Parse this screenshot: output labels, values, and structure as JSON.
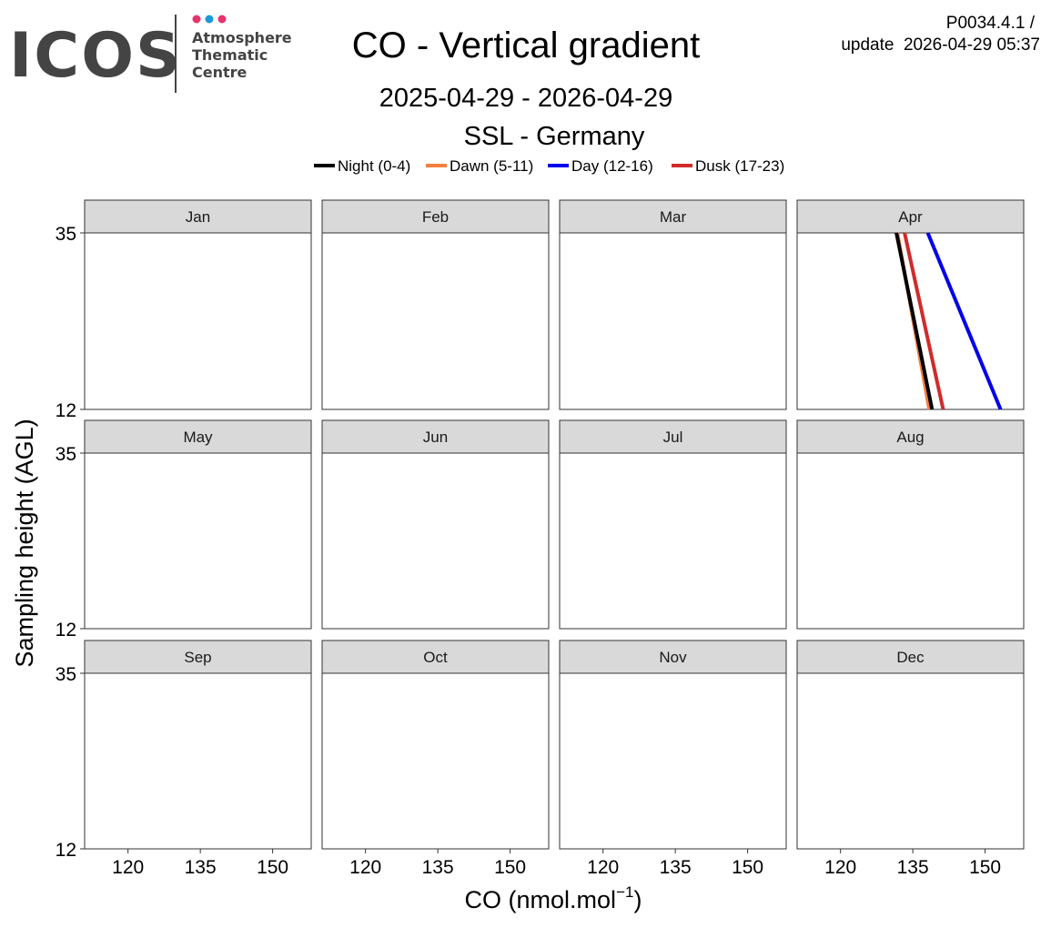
{
  "header": {
    "logo": {
      "wordmark": "ICOS",
      "lines": [
        "Atmosphere",
        "Thematic",
        "Centre"
      ],
      "dot_colors": [
        "#e8336d",
        "#1a9bd7",
        "#e8336d"
      ],
      "text_color": "#444444",
      "divider_color": "#444444"
    },
    "title": "CO - Vertical gradient",
    "date_range": "2025-04-29 - 2026-04-29",
    "station": "SSL - Germany",
    "version": "P0034.4.1 /",
    "update": "update  2026-04-29 05:37"
  },
  "chart_data": {
    "type": "line",
    "xlabel": "CO (nmol.mol",
    "xlabel_sup": "−1",
    "xlabel_close": ")",
    "ylabel": "Sampling height (AGL)",
    "xlim": [
      111,
      158
    ],
    "xticks": [
      120,
      135,
      150
    ],
    "xtick_labels": [
      "120",
      "135",
      "150"
    ],
    "ylim": [
      12,
      35
    ],
    "yticks": [
      12,
      35
    ],
    "ytick_labels": [
      "12",
      "35"
    ],
    "grid": false,
    "legend": {
      "placement": "top",
      "entries": [
        {
          "name": "Night (0-4)",
          "color": "#000000"
        },
        {
          "name": "Dawn (5-11)",
          "color": "#f47f3f"
        },
        {
          "name": "Day (12-16)",
          "color": "#0000ee"
        },
        {
          "name": "Dusk (17-23)",
          "color": "#d12b2b"
        }
      ]
    },
    "panels": [
      {
        "label": "Jan",
        "series": []
      },
      {
        "label": "Feb",
        "series": []
      },
      {
        "label": "Mar",
        "series": []
      },
      {
        "label": "Apr",
        "series": [
          {
            "name": "Dawn (5-11)",
            "color": "#f47f3f",
            "points": [
              [
                131.8,
                35
              ],
              [
                138.4,
                12
              ]
            ]
          },
          {
            "name": "Night (0-4)",
            "color": "#000000",
            "points": [
              [
                131.6,
                35
              ],
              [
                139.0,
                12
              ]
            ]
          },
          {
            "name": "Dusk (17-23)",
            "color": "#d12b2b",
            "points": [
              [
                133.3,
                35
              ],
              [
                141.3,
                12
              ]
            ]
          },
          {
            "name": "Day (12-16)",
            "color": "#0000ee",
            "points": [
              [
                138.1,
                35
              ],
              [
                153.2,
                12
              ]
            ]
          }
        ]
      },
      {
        "label": "May",
        "series": []
      },
      {
        "label": "Jun",
        "series": []
      },
      {
        "label": "Jul",
        "series": []
      },
      {
        "label": "Aug",
        "series": []
      },
      {
        "label": "Sep",
        "series": []
      },
      {
        "label": "Oct",
        "series": []
      },
      {
        "label": "Nov",
        "series": []
      },
      {
        "label": "Dec",
        "series": []
      }
    ]
  }
}
